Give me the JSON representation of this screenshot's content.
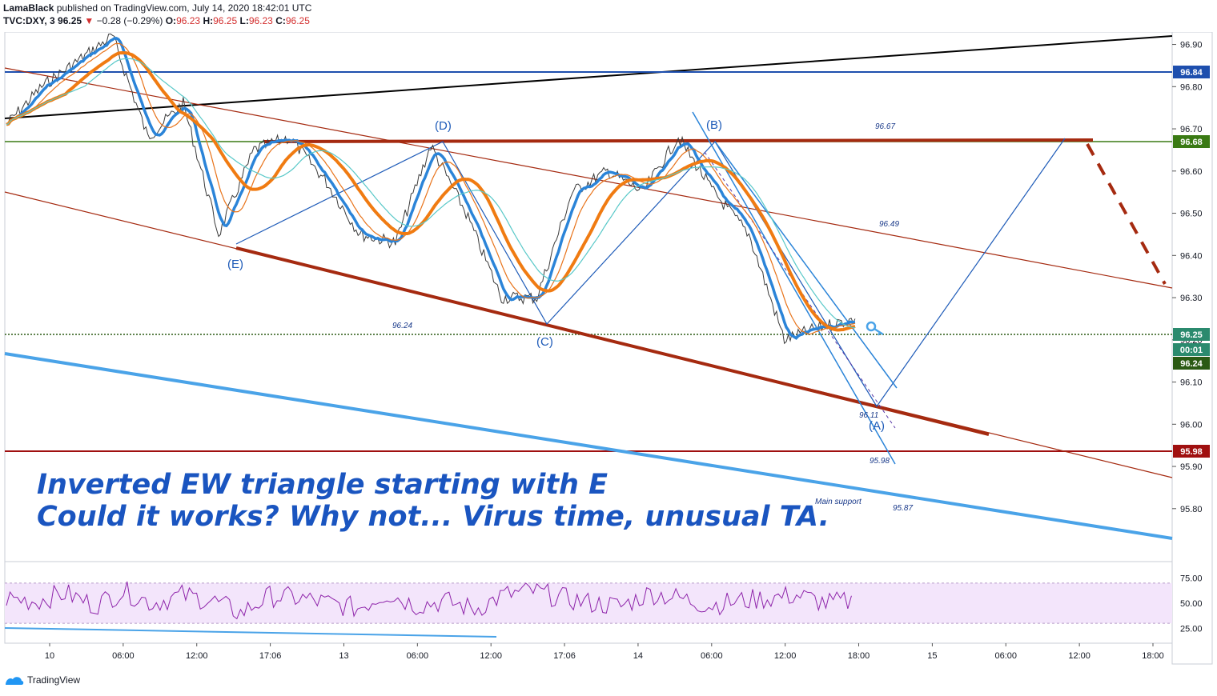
{
  "header": {
    "author": "LamaBlack",
    "published_text": "published on TradingView.com, July 14, 2020 18:42:01 UTC",
    "symbol": "TVC:DXY, 3",
    "price": "96.25",
    "change": "−0.28 (−0.29%)",
    "o_label": "O:",
    "o_value": "96.23",
    "h_label": "H:",
    "h_value": "96.25",
    "l_label": "L:",
    "l_value": "96.23",
    "c_label": "C:",
    "c_value": "96.25"
  },
  "footer": {
    "brand": "TradingView"
  },
  "chart_data": {
    "type": "line",
    "symbol": "TVC:DXY",
    "interval": "3",
    "price_axis": {
      "ylim": [
        95.72,
        96.95
      ],
      "ticks": [
        "96.90",
        "96.80",
        "96.70",
        "96.60",
        "96.50",
        "96.40",
        "96.30",
        "96.20",
        "96.10",
        "96.00",
        "95.90",
        "95.80"
      ]
    },
    "time_axis": {
      "labels": [
        "10",
        "06:00",
        "12:00",
        "17:06",
        "13",
        "06:00",
        "12:00",
        "17:06",
        "14",
        "06:00",
        "12:00",
        "18:00",
        "15",
        "06:00",
        "12:00",
        "18:00"
      ]
    },
    "price_tags": [
      {
        "value": "96.84",
        "color": "#1e4fae"
      },
      {
        "value": "96.68",
        "color": "#3a7a14"
      },
      {
        "value": "96.25",
        "color": "#2b8a6e"
      },
      {
        "value": "00:01",
        "color": "#2b8a6e"
      },
      {
        "value": "96.24",
        "color": "#2b5a14"
      },
      {
        "value": "95.98",
        "color": "#a01010"
      }
    ],
    "wave_labels": [
      "(E)",
      "(D)",
      "(C)",
      "(B)",
      "(A)"
    ],
    "level_labels": [
      "96.67",
      "96.49",
      "96.24",
      "96.11",
      "95.98",
      "95.87",
      "Main support"
    ],
    "annotation_lines": [
      "Inverted EW triangle starting with E",
      "Could it works? Why not... Virus time, unusual TA."
    ],
    "horizontal_levels": [
      96.84,
      96.68,
      96.24,
      95.98
    ],
    "price_series": [
      {
        "x": "10 00:00",
        "y": 96.71
      },
      {
        "x": "10 03:00",
        "y": 96.8
      },
      {
        "x": "10 06:00",
        "y": 96.86
      },
      {
        "x": "10 07:30",
        "y": 96.92
      },
      {
        "x": "10 10:00",
        "y": 96.68
      },
      {
        "x": "10 12:00",
        "y": 96.76
      },
      {
        "x": "10 14:30",
        "y": 96.45
      },
      {
        "x": "10 17:06",
        "y": 96.65
      },
      {
        "x": "10 20:00",
        "y": 96.68
      },
      {
        "x": "13 00:00",
        "y": 96.58
      },
      {
        "x": "13 03:00",
        "y": 96.45
      },
      {
        "x": "13 06:00",
        "y": 96.43
      },
      {
        "x": "13 09:00",
        "y": 96.66
      },
      {
        "x": "13 12:00",
        "y": 96.5
      },
      {
        "x": "13 15:00",
        "y": 96.3
      },
      {
        "x": "13 17:06",
        "y": 96.3
      },
      {
        "x": "13 21:00",
        "y": 96.55
      },
      {
        "x": "14 00:00",
        "y": 96.6
      },
      {
        "x": "14 06:00",
        "y": 96.55
      },
      {
        "x": "14 07:30",
        "y": 96.68
      },
      {
        "x": "14 10:00",
        "y": 96.55
      },
      {
        "x": "14 12:00",
        "y": 96.45
      },
      {
        "x": "14 15:00",
        "y": 96.2
      },
      {
        "x": "14 18:00",
        "y": 96.23
      },
      {
        "x": "14 18:42",
        "y": 96.25
      }
    ],
    "rsi": {
      "ticks": [
        "75.00",
        "50.00",
        "25.00"
      ],
      "band": [
        30,
        70
      ],
      "values": [
        55,
        52,
        60,
        48,
        62,
        50,
        58,
        53,
        40,
        57,
        55,
        50,
        45,
        60,
        48,
        52,
        44,
        58,
        62,
        55,
        50,
        47,
        60,
        55,
        48,
        52,
        55,
        58,
        50,
        52
      ]
    }
  }
}
